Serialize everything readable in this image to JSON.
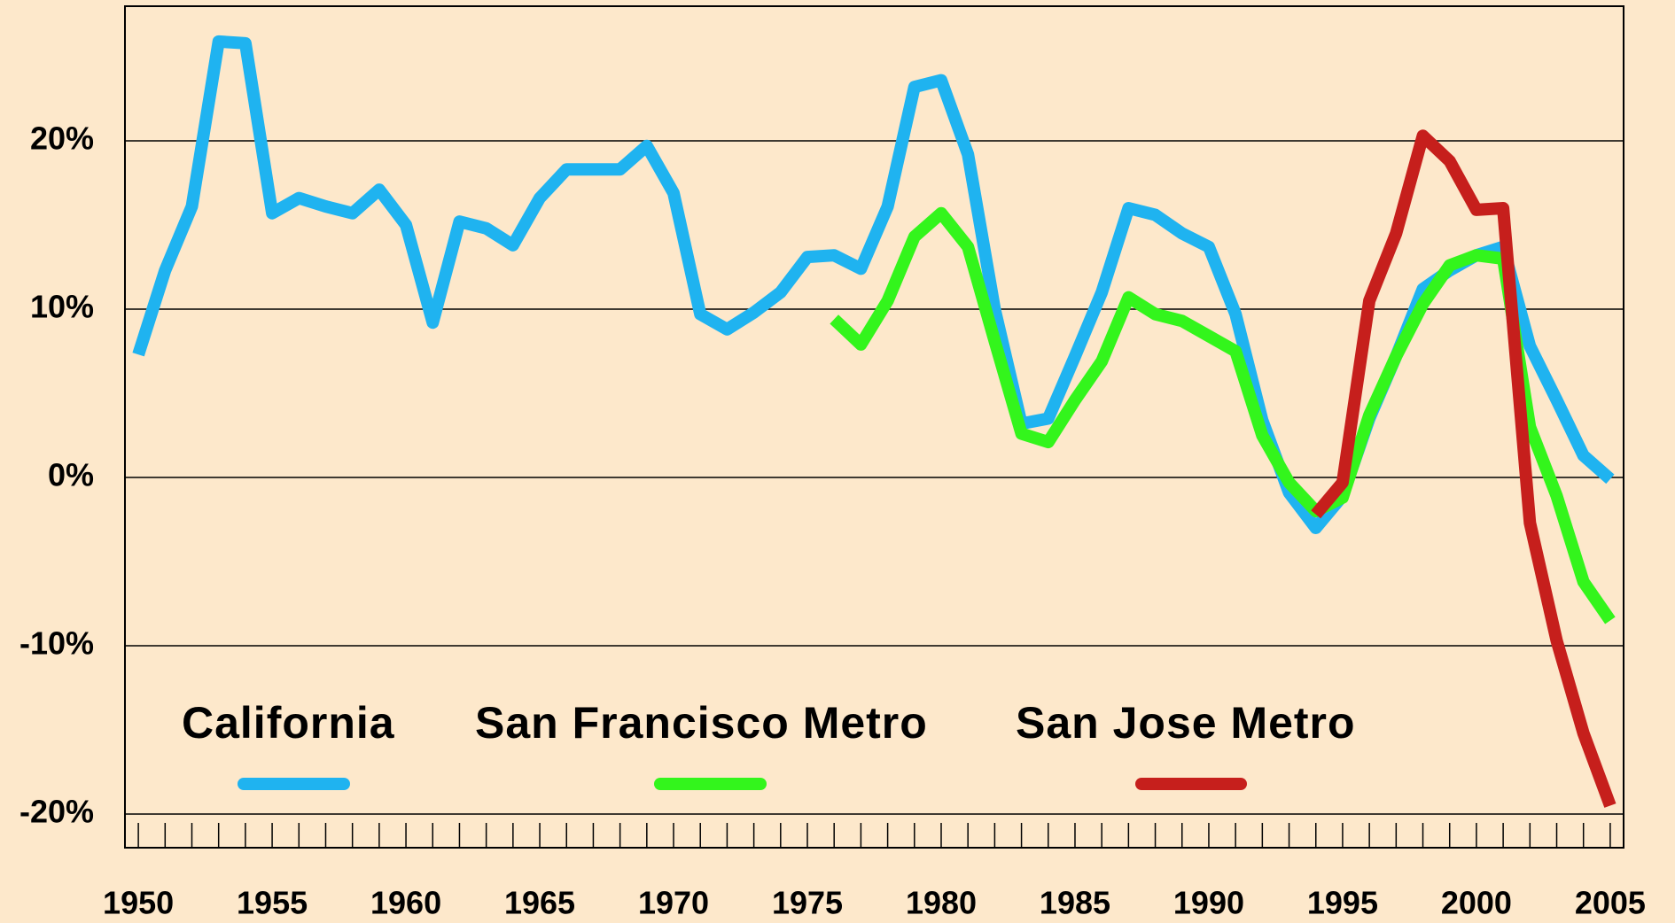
{
  "chart_data": {
    "type": "line",
    "x": [
      1950,
      1951,
      1952,
      1953,
      1954,
      1955,
      1956,
      1957,
      1958,
      1959,
      1960,
      1961,
      1962,
      1963,
      1964,
      1965,
      1966,
      1967,
      1968,
      1969,
      1970,
      1971,
      1972,
      1973,
      1974,
      1975,
      1976,
      1977,
      1978,
      1979,
      1980,
      1981,
      1982,
      1983,
      1984,
      1985,
      1986,
      1987,
      1988,
      1989,
      1990,
      1991,
      1992,
      1993,
      1994,
      1995,
      1996,
      1997,
      1998,
      1999,
      2000,
      2001,
      2002,
      2003,
      2004,
      2005
    ],
    "series": [
      {
        "name": "California",
        "color": "#1fb3f0",
        "values": [
          7.3,
          12.3,
          16.1,
          25.9,
          25.8,
          15.7,
          16.6,
          16.1,
          15.7,
          17.1,
          15.0,
          9.2,
          15.2,
          14.8,
          13.8,
          16.6,
          18.3,
          18.3,
          18.3,
          19.7,
          16.9,
          9.7,
          8.8,
          9.8,
          11.0,
          13.1,
          13.2,
          12.4,
          16.1,
          23.2,
          23.6,
          19.2,
          10.0,
          3.2,
          3.5,
          7.2,
          11.0,
          16.0,
          15.6,
          14.5,
          13.7,
          9.7,
          3.4,
          -0.9,
          -3.0,
          -1.1,
          3.5,
          7.2,
          11.2,
          12.3,
          13.2,
          13.7,
          7.8,
          4.6,
          1.3,
          -0.1
        ]
      },
      {
        "name": "San Francisco Metro",
        "color": "#33f51c",
        "values": [
          null,
          null,
          null,
          null,
          null,
          null,
          null,
          null,
          null,
          null,
          null,
          null,
          null,
          null,
          null,
          null,
          null,
          null,
          null,
          null,
          null,
          null,
          null,
          null,
          null,
          null,
          9.4,
          7.9,
          10.5,
          14.3,
          15.7,
          13.7,
          8.1,
          2.6,
          2.1,
          4.6,
          6.9,
          10.7,
          9.7,
          9.3,
          8.4,
          7.5,
          2.5,
          -0.3,
          -2.0,
          -1.2,
          3.7,
          7.2,
          10.3,
          12.6,
          13.2,
          13.0,
          3.0,
          -1.1,
          -6.2,
          -8.5
        ]
      },
      {
        "name": "San Jose Metro",
        "color": "#c61f1c",
        "values": [
          null,
          null,
          null,
          null,
          null,
          null,
          null,
          null,
          null,
          null,
          null,
          null,
          null,
          null,
          null,
          null,
          null,
          null,
          null,
          null,
          null,
          null,
          null,
          null,
          null,
          null,
          null,
          null,
          null,
          null,
          null,
          null,
          null,
          null,
          null,
          null,
          null,
          null,
          null,
          null,
          null,
          null,
          null,
          null,
          -2.2,
          -0.3,
          10.5,
          14.5,
          20.3,
          18.8,
          15.9,
          16.0,
          -2.7,
          -9.7,
          -15.2,
          -19.5
        ]
      }
    ],
    "xlim": [
      1949.5,
      2005.5
    ],
    "xticks": [
      1950,
      1955,
      1960,
      1965,
      1970,
      1975,
      1980,
      1985,
      1990,
      1995,
      2000,
      2005
    ],
    "xminorticks": [
      1950,
      1951,
      1952,
      1953,
      1954,
      1955,
      1956,
      1957,
      1958,
      1959,
      1960,
      1961,
      1962,
      1963,
      1964,
      1965,
      1966,
      1967,
      1968,
      1969,
      1970,
      1971,
      1972,
      1973,
      1974,
      1975,
      1976,
      1977,
      1978,
      1979,
      1980,
      1981,
      1982,
      1983,
      1984,
      1985,
      1986,
      1987,
      1988,
      1989,
      1990,
      1991,
      1992,
      1993,
      1994,
      1995,
      1996,
      1997,
      1998,
      1999,
      2000,
      2001,
      2002,
      2003,
      2004,
      2005
    ],
    "ylim": [
      -22,
      28
    ],
    "yticks": [
      {
        "value": -20,
        "label": "-20%"
      },
      {
        "value": -10,
        "label": "-10%"
      },
      {
        "value": 0,
        "label": "0%"
      },
      {
        "value": 10,
        "label": "10%"
      },
      {
        "value": 20,
        "label": "20%"
      }
    ],
    "grid": true
  }
}
